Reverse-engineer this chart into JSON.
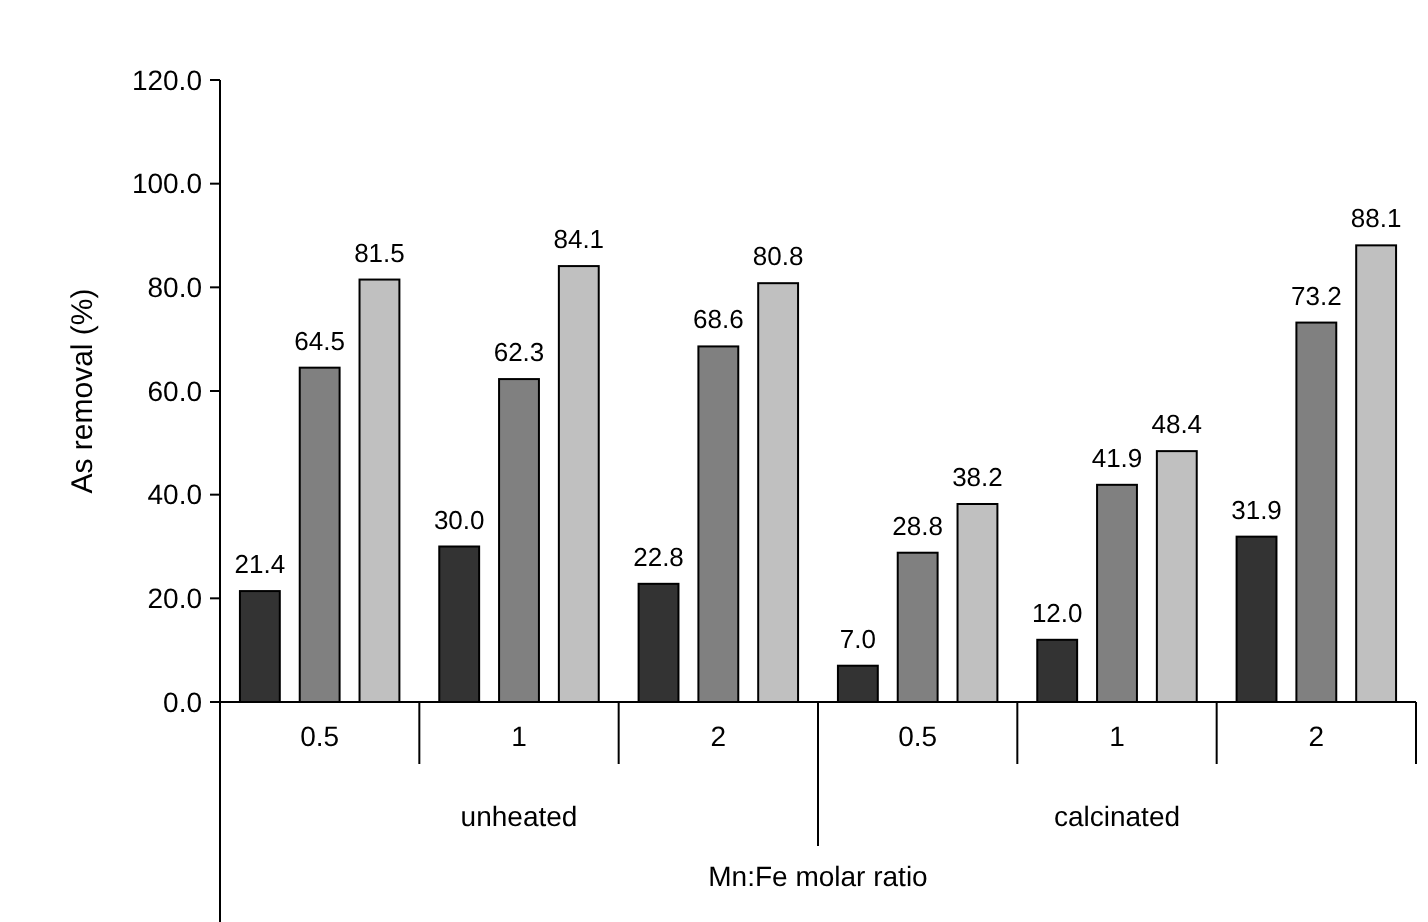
{
  "chart_data": {
    "type": "bar",
    "ylabel": "As removal (%)",
    "xlabel": "Mn:Fe molar ratio",
    "categories": [
      "0.5",
      "1",
      "2",
      "0.5",
      "1",
      "2"
    ],
    "series": [
      {
        "color": "#333333",
        "values": [
          21.4,
          30.0,
          22.8,
          7.0,
          12.0,
          31.9
        ],
        "value_labels": [
          "21.4",
          "30.0",
          "22.8",
          "7.0",
          "12.0",
          "31.9"
        ]
      },
      {
        "color": "#808080",
        "values": [
          64.5,
          62.3,
          68.6,
          28.8,
          41.9,
          73.2
        ],
        "value_labels": [
          "64.5",
          "62.3",
          "68.6",
          "28.8",
          "41.9",
          "73.2"
        ]
      },
      {
        "color": "#c0c0c0",
        "values": [
          81.5,
          84.1,
          80.8,
          38.2,
          48.4,
          88.1
        ],
        "value_labels": [
          "81.5",
          "84.1",
          "80.8",
          "38.2",
          "48.4",
          "88.1"
        ]
      }
    ],
    "annotations": [
      "unheated",
      "calcinated"
    ],
    "ylim": [
      0,
      120
    ],
    "yticks": [
      {
        "value": 0,
        "label": "0.0"
      },
      {
        "value": 20,
        "label": "20.0"
      },
      {
        "value": 40,
        "label": "40.0"
      },
      {
        "value": 60,
        "label": "60.0"
      },
      {
        "value": 80,
        "label": "80.0"
      },
      {
        "value": 100,
        "label": "100.0"
      },
      {
        "value": 120,
        "label": "120.0"
      }
    ],
    "grid": false
  }
}
